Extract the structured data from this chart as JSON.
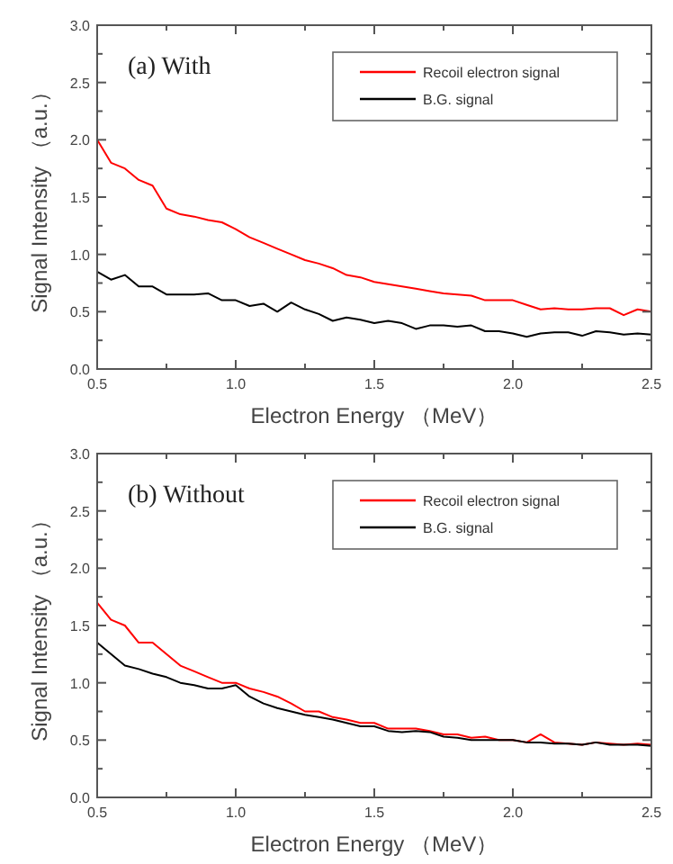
{
  "chart_data": [
    {
      "type": "line",
      "title": "(a) With",
      "xlabel": "Electron Energy （MeV）",
      "ylabel": "Signal Intensity （a.u.）",
      "x": [
        0.5,
        0.55,
        0.6,
        0.65,
        0.7,
        0.75,
        0.8,
        0.85,
        0.9,
        0.95,
        1.0,
        1.05,
        1.1,
        1.15,
        1.2,
        1.25,
        1.3,
        1.35,
        1.4,
        1.45,
        1.5,
        1.55,
        1.6,
        1.65,
        1.7,
        1.75,
        1.8,
        1.85,
        1.9,
        1.95,
        2.0,
        2.05,
        2.1,
        2.15,
        2.2,
        2.25,
        2.3,
        2.35,
        2.4,
        2.45,
        2.5
      ],
      "series": [
        {
          "name": "Recoil electron signal",
          "color": "#ff0000",
          "values": [
            2.0,
            1.8,
            1.75,
            1.65,
            1.6,
            1.4,
            1.35,
            1.33,
            1.3,
            1.28,
            1.22,
            1.15,
            1.1,
            1.05,
            1.0,
            0.95,
            0.92,
            0.88,
            0.82,
            0.8,
            0.76,
            0.74,
            0.72,
            0.7,
            0.68,
            0.66,
            0.65,
            0.64,
            0.6,
            0.6,
            0.6,
            0.56,
            0.52,
            0.53,
            0.52,
            0.52,
            0.53,
            0.53,
            0.47,
            0.52,
            0.5
          ]
        },
        {
          "name": "B.G. signal",
          "color": "#000000",
          "values": [
            0.85,
            0.78,
            0.82,
            0.72,
            0.72,
            0.65,
            0.65,
            0.65,
            0.66,
            0.6,
            0.6,
            0.55,
            0.57,
            0.5,
            0.58,
            0.52,
            0.48,
            0.42,
            0.45,
            0.43,
            0.4,
            0.42,
            0.4,
            0.35,
            0.38,
            0.38,
            0.37,
            0.38,
            0.33,
            0.33,
            0.31,
            0.28,
            0.31,
            0.32,
            0.32,
            0.29,
            0.33,
            0.32,
            0.3,
            0.31,
            0.3
          ]
        }
      ],
      "xlim": [
        0.5,
        2.5
      ],
      "ylim": [
        0.0,
        3.0
      ],
      "xticks": [
        {
          "value": 0.5,
          "label": "0.5"
        },
        {
          "value": 1.0,
          "label": "1.0"
        },
        {
          "value": 1.5,
          "label": "1.5"
        },
        {
          "value": 2.0,
          "label": "2.0"
        },
        {
          "value": 2.5,
          "label": "2.5"
        }
      ],
      "yticks": [
        {
          "value": 0,
          "label": "0.0"
        },
        {
          "value": 0.5,
          "label": "0.5"
        },
        {
          "value": 1.0,
          "label": "1.0"
        },
        {
          "value": 1.5,
          "label": "1.5"
        },
        {
          "value": 2.0,
          "label": "2.0"
        },
        {
          "value": 2.5,
          "label": "2.5"
        },
        {
          "value": 3.0,
          "label": "3.0"
        }
      ],
      "legend": "top right",
      "grid": false
    },
    {
      "type": "line",
      "title": "(b) Without",
      "xlabel": "Electron Energy （MeV）",
      "ylabel": "Signal Intensity （a.u.）",
      "x": [
        0.5,
        0.55,
        0.6,
        0.65,
        0.7,
        0.75,
        0.8,
        0.85,
        0.9,
        0.95,
        1.0,
        1.05,
        1.1,
        1.15,
        1.2,
        1.25,
        1.3,
        1.35,
        1.4,
        1.45,
        1.5,
        1.55,
        1.6,
        1.65,
        1.7,
        1.75,
        1.8,
        1.85,
        1.9,
        1.95,
        2.0,
        2.05,
        2.1,
        2.15,
        2.2,
        2.25,
        2.3,
        2.35,
        2.4,
        2.45,
        2.5
      ],
      "series": [
        {
          "name": "Recoil electron signal",
          "color": "#ff0000",
          "values": [
            1.7,
            1.55,
            1.5,
            1.35,
            1.35,
            1.25,
            1.15,
            1.1,
            1.05,
            1.0,
            1.0,
            0.95,
            0.92,
            0.88,
            0.82,
            0.75,
            0.75,
            0.7,
            0.68,
            0.65,
            0.65,
            0.6,
            0.6,
            0.6,
            0.58,
            0.55,
            0.55,
            0.52,
            0.53,
            0.5,
            0.5,
            0.48,
            0.55,
            0.48,
            0.47,
            0.46,
            0.48,
            0.47,
            0.46,
            0.47,
            0.46
          ]
        },
        {
          "name": "B.G. signal",
          "color": "#000000",
          "values": [
            1.35,
            1.25,
            1.15,
            1.12,
            1.08,
            1.05,
            1.0,
            0.98,
            0.95,
            0.95,
            0.98,
            0.88,
            0.82,
            0.78,
            0.75,
            0.72,
            0.7,
            0.68,
            0.65,
            0.62,
            0.62,
            0.58,
            0.57,
            0.58,
            0.57,
            0.53,
            0.52,
            0.5,
            0.5,
            0.5,
            0.5,
            0.48,
            0.48,
            0.47,
            0.47,
            0.46,
            0.48,
            0.46,
            0.46,
            0.46,
            0.45
          ]
        }
      ],
      "xlim": [
        0.5,
        2.5
      ],
      "ylim": [
        0.0,
        3.0
      ],
      "xticks": [
        {
          "value": 0.5,
          "label": "0.5"
        },
        {
          "value": 1.0,
          "label": "1.0"
        },
        {
          "value": 1.5,
          "label": "1.5"
        },
        {
          "value": 2.0,
          "label": "2.0"
        },
        {
          "value": 2.5,
          "label": "2.5"
        }
      ],
      "yticks": [
        {
          "value": 0,
          "label": "0.0"
        },
        {
          "value": 0.5,
          "label": "0.5"
        },
        {
          "value": 1.0,
          "label": "1.0"
        },
        {
          "value": 1.5,
          "label": "1.5"
        },
        {
          "value": 2.0,
          "label": "2.0"
        },
        {
          "value": 2.5,
          "label": "2.5"
        },
        {
          "value": 3.0,
          "label": "3.0"
        }
      ],
      "legend": "top right",
      "grid": false
    }
  ]
}
